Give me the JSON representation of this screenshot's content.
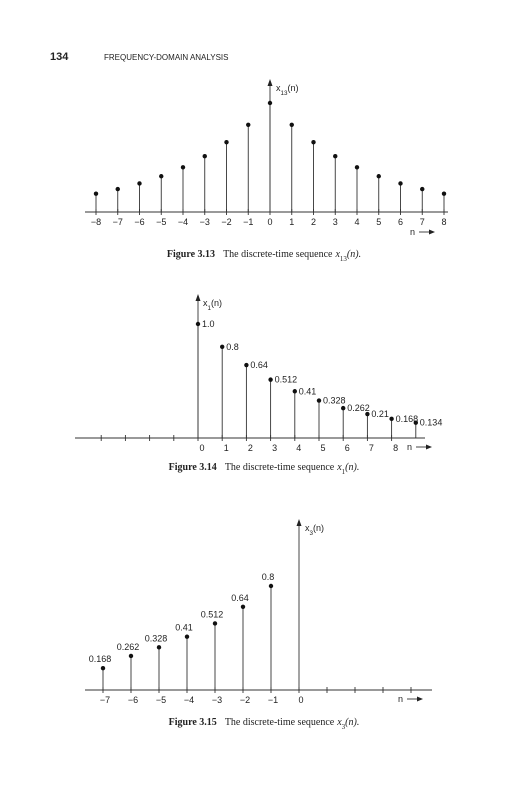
{
  "header": {
    "page_number": "134",
    "running_title": "FREQUENCY-DOMAIN ANALYSIS"
  },
  "figures": [
    {
      "label": "Figure 3.13",
      "caption": "The discrete-time sequence",
      "caption_symbol": {
        "base": "x",
        "sub": "13",
        "arg": "(n)."
      },
      "chart_data": {
        "type": "stem",
        "y_label": {
          "base": "x",
          "sub": "13",
          "arg": "(n)"
        },
        "x_label": "n",
        "x": [
          -8,
          -7,
          -6,
          -5,
          -4,
          -3,
          -2,
          -1,
          0,
          1,
          2,
          3,
          4,
          5,
          6,
          7,
          8
        ],
        "values": [
          0.168,
          0.21,
          0.262,
          0.328,
          0.41,
          0.512,
          0.64,
          0.8,
          1,
          0.8,
          0.64,
          0.512,
          0.41,
          0.328,
          0.262,
          0.21,
          0.168
        ],
        "xticks": [
          {
            "value": -8,
            "label": "−8"
          },
          {
            "value": -7,
            "label": "−7"
          },
          {
            "value": -6,
            "label": "−6"
          },
          {
            "value": -5,
            "label": "−5"
          },
          {
            "value": -4,
            "label": "−4"
          },
          {
            "value": -3,
            "label": "−3"
          },
          {
            "value": -2,
            "label": "−2"
          },
          {
            "value": -1,
            "label": "−1"
          },
          0,
          1,
          2,
          3,
          4,
          5,
          6,
          7,
          8
        ]
      }
    },
    {
      "label": "Figure 3.14",
      "caption": "The discrete-time sequence",
      "caption_symbol": {
        "base": "x",
        "sub": "1",
        "arg": "(n)."
      },
      "chart_data": {
        "type": "stem",
        "y_label": {
          "base": "x",
          "sub": "1",
          "arg": "(n)"
        },
        "x_label": "n",
        "x": [
          0,
          1,
          2,
          3,
          4,
          5,
          6,
          7,
          8,
          9
        ],
        "values": [
          1,
          0.8,
          0.64,
          0.512,
          0.41,
          0.328,
          0.262,
          0.21,
          0.168,
          0.134
        ],
        "value_labels": [
          "1.0",
          "0.8",
          "0.64",
          "0.512",
          "0.41",
          "0.328",
          "0.262",
          "0.21",
          "0.168",
          "0.134"
        ],
        "xticks": [
          0,
          1,
          2,
          3,
          4,
          5,
          6,
          7,
          8
        ],
        "minor_xticks": [
          -4,
          -3,
          -2,
          -1
        ]
      }
    },
    {
      "label": "Figure 3.15",
      "caption": "The discrete-time sequence",
      "caption_symbol": {
        "base": "x",
        "sub": "3",
        "arg": "(n)."
      },
      "chart_data": {
        "type": "stem",
        "y_label": {
          "base": "x",
          "sub": "3",
          "arg": "(n)"
        },
        "x_label": "n",
        "x": [
          -7,
          -6,
          -5,
          -4,
          -3,
          -2,
          -1
        ],
        "values": [
          0.168,
          0.262,
          0.328,
          0.41,
          0.512,
          0.64,
          0.8
        ],
        "value_labels": [
          "0.168",
          "0.262",
          "0.328",
          "0.41",
          "0.512",
          "0.64",
          "0.8"
        ],
        "xticks": [
          {
            "value": -7,
            "label": "−7"
          },
          {
            "value": -6,
            "label": "−6"
          },
          {
            "value": -5,
            "label": "−5"
          },
          {
            "value": -4,
            "label": "−4"
          },
          {
            "value": -3,
            "label": "−3"
          },
          {
            "value": -2,
            "label": "−2"
          },
          {
            "value": -1,
            "label": "−1"
          },
          0
        ],
        "minor_xticks": [
          1,
          2,
          3,
          4
        ]
      }
    }
  ]
}
